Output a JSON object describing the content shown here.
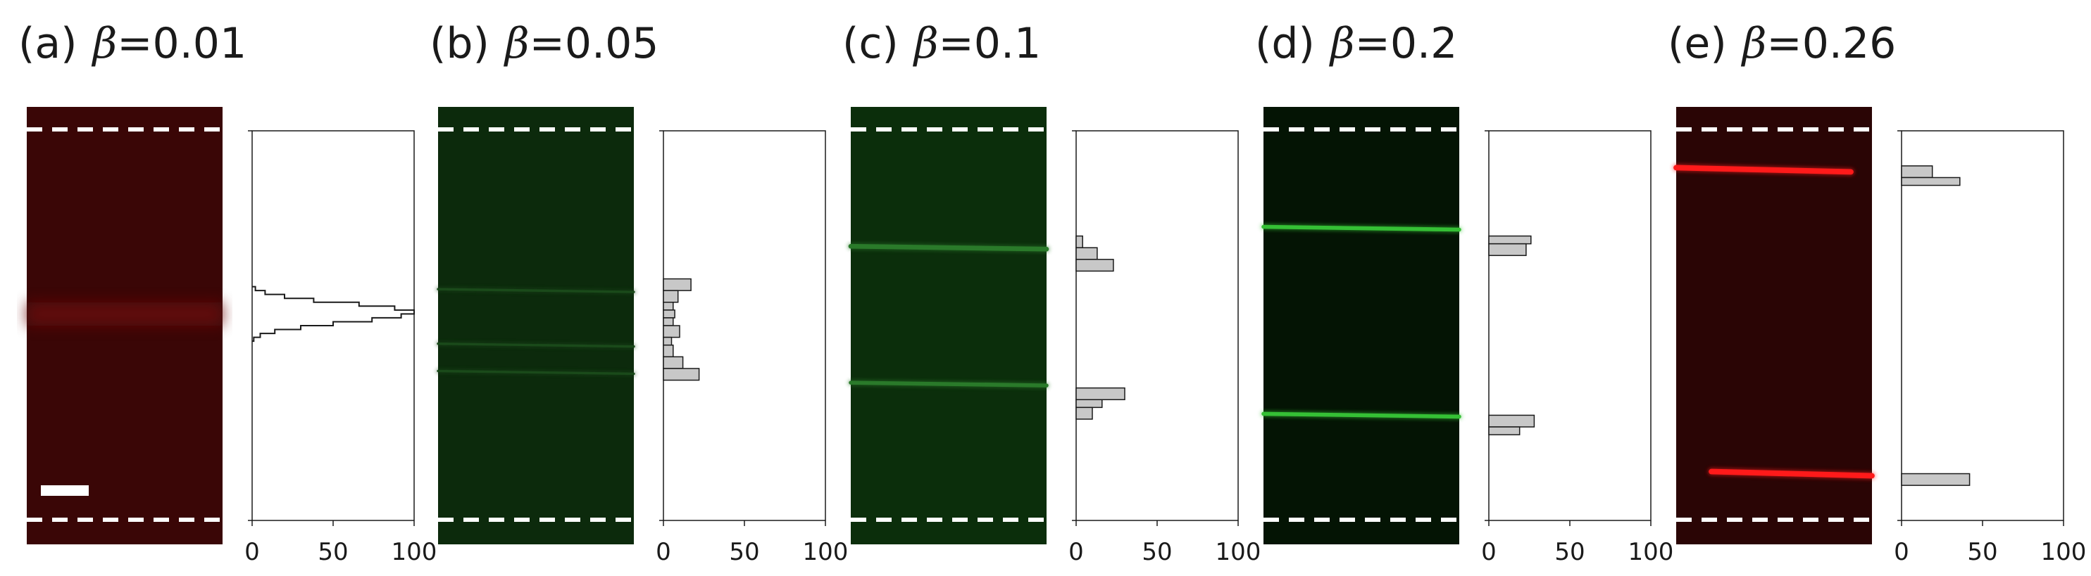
{
  "figure": {
    "panels": [
      {
        "letter": "(a)",
        "symbol": "β",
        "value": "=0.01",
        "image_color": "#3a0606",
        "line_color": "#6a0a0a"
      },
      {
        "letter": "(b)",
        "symbol": "β",
        "value": "=0.05",
        "image_color": "#0c2a0c",
        "line_color": "#1a4a1a"
      },
      {
        "letter": "(c)",
        "symbol": "β",
        "value": "=0.1",
        "image_color": "#0b2e0b",
        "line_color": "#2a7a2a"
      },
      {
        "letter": "(d)",
        "symbol": "β",
        "value": "=0.2",
        "image_color": "#041404",
        "line_color": "#35c035"
      },
      {
        "letter": "(e)",
        "symbol": "β",
        "value": "=0.26",
        "image_color": "#2a0505",
        "line_color": "#ff1a1a"
      }
    ]
  },
  "chart_data": [
    {
      "type": "histogram-step",
      "title": "(a) β=0.01",
      "xlim": [
        0,
        100
      ],
      "ylim": [
        0,
        1
      ],
      "xticks": [
        "0",
        "50",
        "100"
      ],
      "bins": [
        {
          "y0": 0.4,
          "y1": 0.41,
          "v": 2
        },
        {
          "y0": 0.41,
          "y1": 0.42,
          "v": 8
        },
        {
          "y0": 0.42,
          "y1": 0.43,
          "v": 20
        },
        {
          "y0": 0.43,
          "y1": 0.44,
          "v": 38
        },
        {
          "y0": 0.44,
          "y1": 0.45,
          "v": 66
        },
        {
          "y0": 0.45,
          "y1": 0.46,
          "v": 88
        },
        {
          "y0": 0.46,
          "y1": 0.47,
          "v": 100
        },
        {
          "y0": 0.47,
          "y1": 0.48,
          "v": 92
        },
        {
          "y0": 0.48,
          "y1": 0.49,
          "v": 74
        },
        {
          "y0": 0.49,
          "y1": 0.5,
          "v": 50
        },
        {
          "y0": 0.5,
          "y1": 0.51,
          "v": 30
        },
        {
          "y0": 0.51,
          "y1": 0.52,
          "v": 14
        },
        {
          "y0": 0.52,
          "y1": 0.53,
          "v": 5
        },
        {
          "y0": 0.53,
          "y1": 0.54,
          "v": 1
        }
      ],
      "image_lines": [
        {
          "pos": 0.47,
          "thickness": 0.06
        }
      ]
    },
    {
      "type": "histogram-bar",
      "title": "(b) β=0.05",
      "xlim": [
        0,
        100
      ],
      "ylim": [
        0,
        1
      ],
      "xticks": [
        "0",
        "50",
        "100"
      ],
      "bins": [
        {
          "y0": 0.38,
          "y1": 0.41,
          "v": 17
        },
        {
          "y0": 0.41,
          "y1": 0.44,
          "v": 9
        },
        {
          "y0": 0.44,
          "y1": 0.46,
          "v": 6
        },
        {
          "y0": 0.46,
          "y1": 0.48,
          "v": 7
        },
        {
          "y0": 0.48,
          "y1": 0.5,
          "v": 6
        },
        {
          "y0": 0.5,
          "y1": 0.53,
          "v": 10
        },
        {
          "y0": 0.53,
          "y1": 0.55,
          "v": 5
        },
        {
          "y0": 0.55,
          "y1": 0.58,
          "v": 6
        },
        {
          "y0": 0.58,
          "y1": 0.61,
          "v": 12
        },
        {
          "y0": 0.61,
          "y1": 0.64,
          "v": 22
        }
      ],
      "image_lines": [
        {
          "pos": 0.41,
          "thickness": 0.006
        },
        {
          "pos": 0.55,
          "thickness": 0.006
        },
        {
          "pos": 0.62,
          "thickness": 0.006
        }
      ]
    },
    {
      "type": "histogram-bar",
      "title": "(c) β=0.1",
      "xlim": [
        0,
        100
      ],
      "ylim": [
        0,
        1
      ],
      "xticks": [
        "0",
        "50",
        "100"
      ],
      "bins": [
        {
          "y0": 0.27,
          "y1": 0.3,
          "v": 4
        },
        {
          "y0": 0.3,
          "y1": 0.33,
          "v": 13
        },
        {
          "y0": 0.33,
          "y1": 0.36,
          "v": 23
        },
        {
          "y0": 0.66,
          "y1": 0.69,
          "v": 30
        },
        {
          "y0": 0.69,
          "y1": 0.71,
          "v": 16
        },
        {
          "y0": 0.71,
          "y1": 0.74,
          "v": 10
        }
      ],
      "image_lines": [
        {
          "pos": 0.3,
          "thickness": 0.012
        },
        {
          "pos": 0.65,
          "thickness": 0.01
        }
      ]
    },
    {
      "type": "histogram-bar",
      "title": "(d) β=0.2",
      "xlim": [
        0,
        100
      ],
      "ylim": [
        0,
        1
      ],
      "xticks": [
        "0",
        "50",
        "100"
      ],
      "bins": [
        {
          "y0": 0.27,
          "y1": 0.29,
          "v": 26
        },
        {
          "y0": 0.29,
          "y1": 0.32,
          "v": 23
        },
        {
          "y0": 0.73,
          "y1": 0.76,
          "v": 28
        },
        {
          "y0": 0.76,
          "y1": 0.78,
          "v": 19
        }
      ],
      "image_lines": [
        {
          "pos": 0.25,
          "thickness": 0.01
        },
        {
          "pos": 0.73,
          "thickness": 0.01
        }
      ]
    },
    {
      "type": "histogram-bar",
      "title": "(e) β=0.26",
      "xlim": [
        0,
        100
      ],
      "ylim": [
        0,
        1
      ],
      "xticks": [
        "0",
        "50",
        "100"
      ],
      "bins": [
        {
          "y0": 0.09,
          "y1": 0.12,
          "v": 19
        },
        {
          "y0": 0.12,
          "y1": 0.14,
          "v": 36
        },
        {
          "y0": 0.88,
          "y1": 0.91,
          "v": 42
        }
      ],
      "image_lines": [
        {
          "pos": 0.1,
          "thickness": 0.014
        },
        {
          "pos": 0.88,
          "thickness": 0.014
        }
      ]
    }
  ]
}
